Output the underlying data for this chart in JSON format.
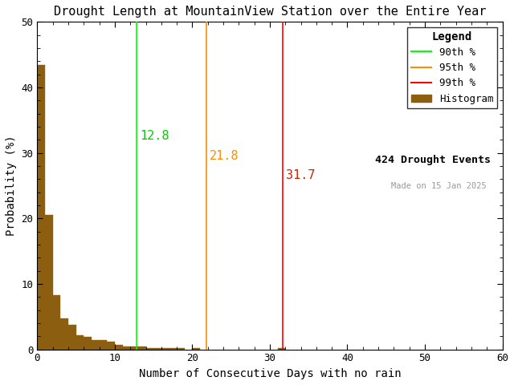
{
  "title": "Drought Length at MountainView Station over the Entire Year",
  "xlabel": "Number of Consecutive Days with no rain",
  "ylabel": "Probability (%)",
  "xlim": [
    0,
    60
  ],
  "ylim": [
    0,
    50
  ],
  "xticks": [
    0,
    10,
    20,
    30,
    40,
    50,
    60
  ],
  "yticks": [
    0,
    10,
    20,
    30,
    40,
    50
  ],
  "bar_color": "#8B5E10",
  "bar_edgecolor": "#8B5E10",
  "background_color": "#ffffff",
  "percentile_90": 12.8,
  "percentile_95": 21.8,
  "percentile_99": 31.7,
  "p90_color": "#00FF00",
  "p95_color": "#FF8C00",
  "p99_color": "#FF0000",
  "p90_label_color": "#00CC00",
  "p95_label_color": "#FF8C00",
  "p99_label_color": "#CC2200",
  "drought_events": 424,
  "made_on": "Made on 15 Jan 2025",
  "histogram_probabilities": [
    43.4,
    20.5,
    8.3,
    4.7,
    3.8,
    2.1,
    1.9,
    1.4,
    1.4,
    1.2,
    0.7,
    0.5,
    0.5,
    0.5,
    0.2,
    0.2,
    0.2,
    0.2,
    0.2,
    0.0,
    0.2,
    0.0,
    0.0,
    0.0,
    0.0,
    0.0,
    0.0,
    0.0,
    0.0,
    0.0,
    0.0,
    0.2,
    0.0,
    0.0,
    0.0,
    0.0,
    0.0,
    0.0,
    0.0,
    0.0,
    0.0,
    0.0,
    0.0,
    0.0,
    0.0,
    0.0,
    0.0,
    0.0,
    0.0,
    0.0,
    0.0,
    0.0,
    0.0,
    0.0,
    0.0,
    0.0,
    0.0,
    0.0,
    0.0,
    0.0
  ],
  "bin_width": 1,
  "title_fontsize": 11,
  "label_fontsize": 10,
  "tick_fontsize": 9,
  "legend_fontsize": 9,
  "annot_fontsize": 11
}
